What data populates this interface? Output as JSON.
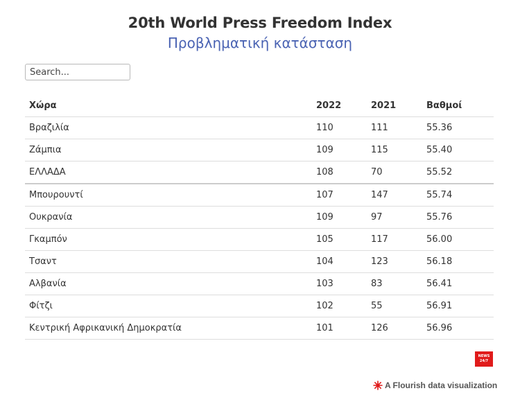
{
  "header": {
    "title": "20th World Press Freedom Index",
    "subtitle": "Προβληματική κατάσταση"
  },
  "search": {
    "placeholder": "Search..."
  },
  "table": {
    "columns": [
      "Χώρα",
      "2022",
      "2021",
      "Βαθμοί"
    ],
    "rows": [
      [
        "Βραζιλία",
        "110",
        "111",
        "55.36"
      ],
      [
        "Ζάμπια",
        "109",
        "115",
        "55.40"
      ],
      [
        "ΕΛΛΑΔΑ",
        "108",
        "70",
        "55.52"
      ],
      [
        "Μπουρουντί",
        "107",
        "147",
        "55.74"
      ],
      [
        "Ουκρανία",
        "109",
        "97",
        "55.76"
      ],
      [
        "Γκαμπόν",
        "105",
        "117",
        "56.00"
      ],
      [
        "Τσαντ",
        "104",
        "123",
        "56.18"
      ],
      [
        "Αλβανία",
        "103",
        "83",
        "56.41"
      ],
      [
        "Φίτζι",
        "102",
        "55",
        "56.91"
      ],
      [
        "Κεντρική Αφρικανική Δημοκρατία",
        "101",
        "126",
        "56.96"
      ]
    ],
    "highlight_row": 2
  },
  "logo": {
    "line1": "NEWS",
    "line2": "24/7",
    "color": "#e01b1b"
  },
  "footer": {
    "icon": "flourish-icon",
    "text": "A Flourish data visualization"
  },
  "chart_data": {
    "type": "table",
    "title": "20th World Press Freedom Index",
    "subtitle": "Προβληματική κατάσταση",
    "columns": [
      "Χώρα",
      "2022",
      "2021",
      "Βαθμοί"
    ],
    "rows": [
      [
        "Βραζιλία",
        110,
        111,
        55.36
      ],
      [
        "Ζάμπια",
        109,
        115,
        55.4
      ],
      [
        "ΕΛΛΑΔΑ",
        108,
        70,
        55.52
      ],
      [
        "Μπουρουντί",
        107,
        147,
        55.74
      ],
      [
        "Ουκρανία",
        109,
        97,
        55.76
      ],
      [
        "Γκαμπόν",
        105,
        117,
        56.0
      ],
      [
        "Τσαντ",
        104,
        123,
        56.18
      ],
      [
        "Αλβανία",
        103,
        83,
        56.41
      ],
      [
        "Φίτζι",
        102,
        55,
        56.91
      ],
      [
        "Κεντρική Αφρικανική Δημοκρατία",
        101,
        126,
        56.96
      ]
    ]
  }
}
